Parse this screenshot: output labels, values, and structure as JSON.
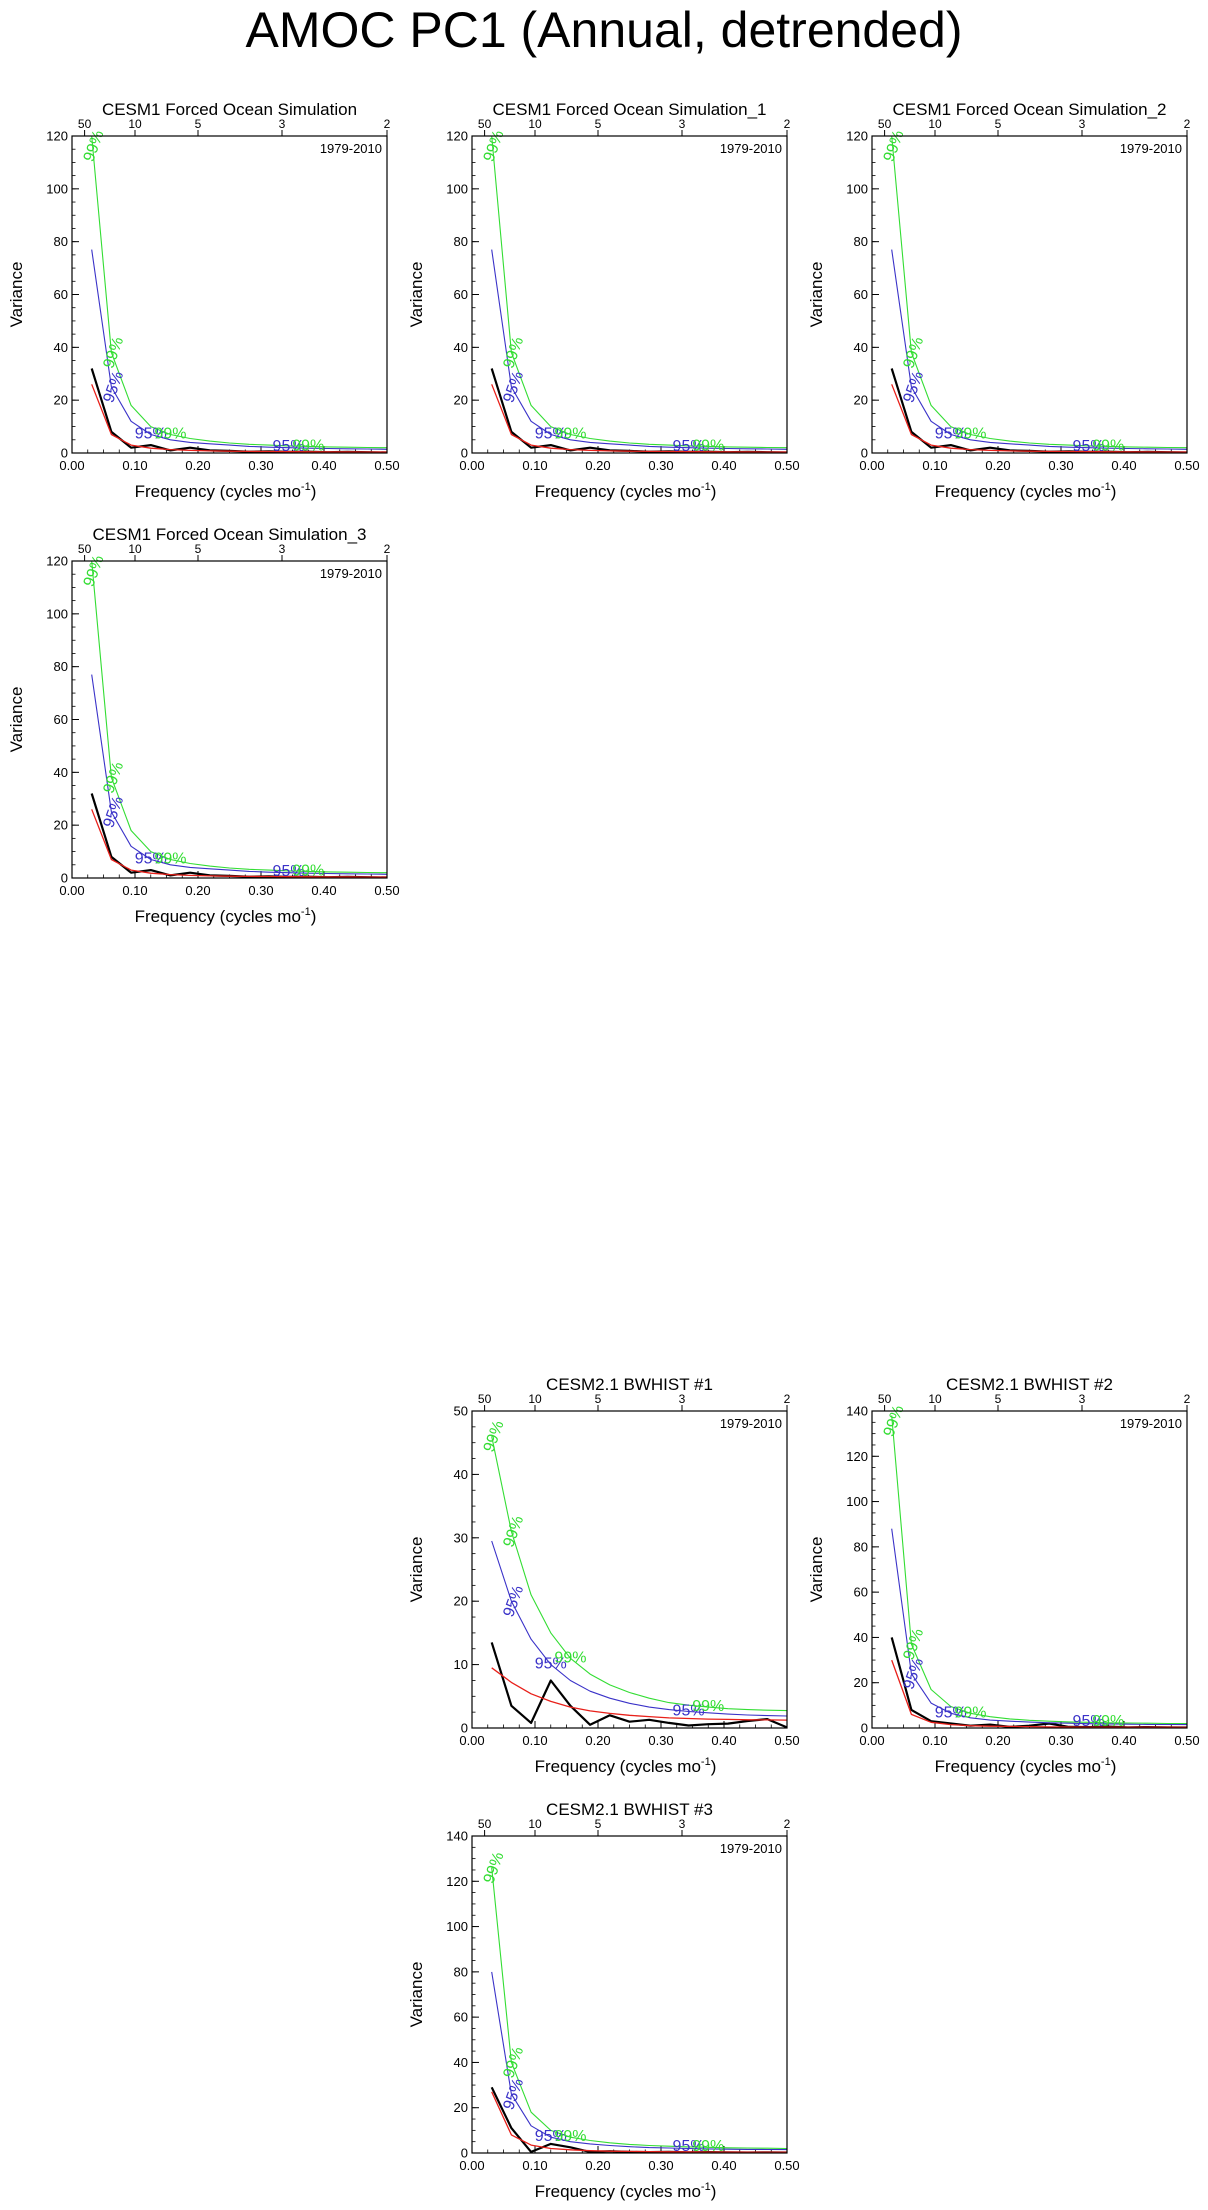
{
  "title": "AMOC PC1 (Annual, detrended)",
  "colors": {
    "series": "#000000",
    "red_noise": "#e8201a",
    "ci95": "#3a32c8",
    "ci99": "#33dd33"
  },
  "chart_data": [
    {
      "type": "line",
      "title": "CESM1 Forced Ocean Simulation",
      "period": "1979-2010",
      "xlabel": "Frequency (cycles mo",
      "xlabel_sup": "-1",
      "xlabel_end": ")",
      "ylabel": "Variance",
      "xlim": [
        0,
        0.5
      ],
      "ylim": [
        0,
        120
      ],
      "yticks": [
        0,
        20,
        40,
        60,
        80,
        100,
        120
      ],
      "xticks": [
        0.0,
        0.1,
        0.2,
        0.3,
        0.4,
        0.5
      ],
      "xtick_labels": [
        "0.00",
        "0.10",
        "0.20",
        "0.30",
        "0.40",
        "0.50"
      ],
      "top_ticks": [
        50,
        10,
        5,
        3,
        2
      ],
      "confidence_labels": {
        "c95": "95%",
        "c99": "99%"
      },
      "x": [
        0.03125,
        0.0625,
        0.09375,
        0.125,
        0.15625,
        0.1875,
        0.21875,
        0.25,
        0.28125,
        0.3125,
        0.34375,
        0.375,
        0.40625,
        0.4375,
        0.46875,
        0.5
      ],
      "series": [
        {
          "values": [
            32,
            8,
            2,
            3,
            1,
            2,
            1,
            0.8,
            0.5,
            0.6,
            0.4,
            0.5,
            0.3,
            0.4,
            0.3,
            0.2
          ]
        },
        {
          "values": [
            26,
            7,
            3,
            1.8,
            1.3,
            1,
            0.8,
            0.7,
            0.6,
            0.55,
            0.5,
            0.45,
            0.42,
            0.4,
            0.38,
            0.36
          ]
        },
        {
          "values": [
            77,
            25,
            12,
            7,
            5,
            4,
            3.5,
            3,
            2.5,
            2.2,
            2,
            1.8,
            1.7,
            1.6,
            1.5,
            1.4
          ]
        },
        {
          "values": [
            120,
            38,
            18,
            10,
            7,
            5.5,
            4.5,
            3.8,
            3.3,
            3,
            2.7,
            2.5,
            2.3,
            2.2,
            2.1,
            2
          ]
        }
      ]
    },
    {
      "type": "line",
      "title": "CESM1 Forced Ocean Simulation_1",
      "period": "1979-2010",
      "xlabel": "Frequency (cycles mo",
      "xlabel_sup": "-1",
      "xlabel_end": ")",
      "ylabel": "Variance",
      "xlim": [
        0,
        0.5
      ],
      "ylim": [
        0,
        120
      ],
      "yticks": [
        0,
        20,
        40,
        60,
        80,
        100,
        120
      ],
      "xticks": [
        0.0,
        0.1,
        0.2,
        0.3,
        0.4,
        0.5
      ],
      "xtick_labels": [
        "0.00",
        "0.10",
        "0.20",
        "0.30",
        "0.40",
        "0.50"
      ],
      "top_ticks": [
        50,
        10,
        5,
        3,
        2
      ],
      "confidence_labels": {
        "c95": "95%",
        "c99": "99%"
      },
      "x": [
        0.03125,
        0.0625,
        0.09375,
        0.125,
        0.15625,
        0.1875,
        0.21875,
        0.25,
        0.28125,
        0.3125,
        0.34375,
        0.375,
        0.40625,
        0.4375,
        0.46875,
        0.5
      ],
      "series": [
        {
          "values": [
            32,
            8,
            2,
            3,
            1,
            2,
            1,
            0.8,
            0.5,
            0.6,
            0.4,
            0.5,
            0.3,
            0.4,
            0.3,
            0.2
          ]
        },
        {
          "values": [
            26,
            7,
            3,
            1.8,
            1.3,
            1,
            0.8,
            0.7,
            0.6,
            0.55,
            0.5,
            0.45,
            0.42,
            0.4,
            0.38,
            0.36
          ]
        },
        {
          "values": [
            77,
            25,
            12,
            7,
            5,
            4,
            3.5,
            3,
            2.5,
            2.2,
            2,
            1.8,
            1.7,
            1.6,
            1.5,
            1.4
          ]
        },
        {
          "values": [
            120,
            38,
            18,
            10,
            7,
            5.5,
            4.5,
            3.8,
            3.3,
            3,
            2.7,
            2.5,
            2.3,
            2.2,
            2.1,
            2
          ]
        }
      ]
    },
    {
      "type": "line",
      "title": "CESM1 Forced Ocean Simulation_2",
      "period": "1979-2010",
      "xlabel": "Frequency (cycles mo",
      "xlabel_sup": "-1",
      "xlabel_end": ")",
      "ylabel": "Variance",
      "xlim": [
        0,
        0.5
      ],
      "ylim": [
        0,
        120
      ],
      "yticks": [
        0,
        20,
        40,
        60,
        80,
        100,
        120
      ],
      "xticks": [
        0.0,
        0.1,
        0.2,
        0.3,
        0.4,
        0.5
      ],
      "xtick_labels": [
        "0.00",
        "0.10",
        "0.20",
        "0.30",
        "0.40",
        "0.50"
      ],
      "top_ticks": [
        50,
        10,
        5,
        3,
        2
      ],
      "confidence_labels": {
        "c95": "95%",
        "c99": "99%"
      },
      "x": [
        0.03125,
        0.0625,
        0.09375,
        0.125,
        0.15625,
        0.1875,
        0.21875,
        0.25,
        0.28125,
        0.3125,
        0.34375,
        0.375,
        0.40625,
        0.4375,
        0.46875,
        0.5
      ],
      "series": [
        {
          "values": [
            32,
            8,
            2,
            3,
            1,
            2,
            1,
            0.8,
            0.5,
            0.6,
            0.4,
            0.5,
            0.3,
            0.4,
            0.3,
            0.2
          ]
        },
        {
          "values": [
            26,
            7,
            3,
            1.8,
            1.3,
            1,
            0.8,
            0.7,
            0.6,
            0.55,
            0.5,
            0.45,
            0.42,
            0.4,
            0.38,
            0.36
          ]
        },
        {
          "values": [
            77,
            25,
            12,
            7,
            5,
            4,
            3.5,
            3,
            2.5,
            2.2,
            2,
            1.8,
            1.7,
            1.6,
            1.5,
            1.4
          ]
        },
        {
          "values": [
            120,
            38,
            18,
            10,
            7,
            5.5,
            4.5,
            3.8,
            3.3,
            3,
            2.7,
            2.5,
            2.3,
            2.2,
            2.1,
            2
          ]
        }
      ]
    },
    {
      "type": "line",
      "title": "CESM1 Forced Ocean Simulation_3",
      "period": "1979-2010",
      "xlabel": "Frequency (cycles mo",
      "xlabel_sup": "-1",
      "xlabel_end": ")",
      "ylabel": "Variance",
      "xlim": [
        0,
        0.5
      ],
      "ylim": [
        0,
        120
      ],
      "yticks": [
        0,
        20,
        40,
        60,
        80,
        100,
        120
      ],
      "xticks": [
        0.0,
        0.1,
        0.2,
        0.3,
        0.4,
        0.5
      ],
      "xtick_labels": [
        "0.00",
        "0.10",
        "0.20",
        "0.30",
        "0.40",
        "0.50"
      ],
      "top_ticks": [
        50,
        10,
        5,
        3,
        2
      ],
      "confidence_labels": {
        "c95": "95%",
        "c99": "99%"
      },
      "x": [
        0.03125,
        0.0625,
        0.09375,
        0.125,
        0.15625,
        0.1875,
        0.21875,
        0.25,
        0.28125,
        0.3125,
        0.34375,
        0.375,
        0.40625,
        0.4375,
        0.46875,
        0.5
      ],
      "series": [
        {
          "values": [
            32,
            8,
            2,
            3,
            1,
            2,
            1,
            0.8,
            0.5,
            0.6,
            0.4,
            0.5,
            0.3,
            0.4,
            0.3,
            0.2
          ]
        },
        {
          "values": [
            26,
            7,
            3,
            1.8,
            1.3,
            1,
            0.8,
            0.7,
            0.6,
            0.55,
            0.5,
            0.45,
            0.42,
            0.4,
            0.38,
            0.36
          ]
        },
        {
          "values": [
            77,
            25,
            12,
            7,
            5,
            4,
            3.5,
            3,
            2.5,
            2.2,
            2,
            1.8,
            1.7,
            1.6,
            1.5,
            1.4
          ]
        },
        {
          "values": [
            120,
            38,
            18,
            10,
            7,
            5.5,
            4.5,
            3.8,
            3.3,
            3,
            2.7,
            2.5,
            2.3,
            2.2,
            2.1,
            2
          ]
        }
      ]
    },
    {
      "type": "line",
      "title": "CESM2.1 BWHIST #1",
      "period": "1979-2010",
      "xlabel": "Frequency (cycles mo",
      "xlabel_sup": "-1",
      "xlabel_end": ")",
      "ylabel": "Variance",
      "xlim": [
        0,
        0.5
      ],
      "ylim": [
        0,
        50
      ],
      "yticks": [
        0,
        10,
        20,
        30,
        40,
        50
      ],
      "xticks": [
        0.0,
        0.1,
        0.2,
        0.3,
        0.4,
        0.5
      ],
      "xtick_labels": [
        "0.00",
        "0.10",
        "0.20",
        "0.30",
        "0.40",
        "0.50"
      ],
      "top_ticks": [
        50,
        10,
        5,
        3,
        2
      ],
      "confidence_labels": {
        "c95": "95%",
        "c99": "99%"
      },
      "x": [
        0.03125,
        0.0625,
        0.09375,
        0.125,
        0.15625,
        0.1875,
        0.21875,
        0.25,
        0.28125,
        0.3125,
        0.34375,
        0.375,
        0.40625,
        0.4375,
        0.46875,
        0.5
      ],
      "series": [
        {
          "values": [
            13.5,
            3.5,
            0.8,
            7.5,
            3.5,
            0.5,
            2,
            1,
            1.3,
            0.8,
            0.4,
            0.6,
            0.7,
            1.1,
            1.4,
            0.1
          ]
        },
        {
          "values": [
            9.5,
            7.2,
            5.4,
            4.2,
            3.3,
            2.7,
            2.3,
            2,
            1.8,
            1.6,
            1.5,
            1.4,
            1.35,
            1.3,
            1.28,
            1.25
          ]
        },
        {
          "values": [
            29.5,
            20,
            14,
            10,
            7.5,
            5.8,
            4.7,
            3.9,
            3.3,
            2.9,
            2.6,
            2.4,
            2.2,
            2.05,
            1.95,
            1.9
          ]
        },
        {
          "values": [
            46,
            31,
            21,
            15,
            11,
            8.5,
            6.8,
            5.6,
            4.7,
            4,
            3.6,
            3.3,
            3.05,
            2.9,
            2.8,
            2.75
          ]
        }
      ]
    },
    {
      "type": "line",
      "title": "CESM2.1 BWHIST #2",
      "period": "1979-2010",
      "xlabel": "Frequency (cycles mo",
      "xlabel_sup": "-1",
      "xlabel_end": ")",
      "ylabel": "Variance",
      "xlim": [
        0,
        0.5
      ],
      "ylim": [
        0,
        140
      ],
      "yticks": [
        0,
        20,
        40,
        60,
        80,
        100,
        120,
        140
      ],
      "xticks": [
        0.0,
        0.1,
        0.2,
        0.3,
        0.4,
        0.5
      ],
      "xtick_labels": [
        "0.00",
        "0.10",
        "0.20",
        "0.30",
        "0.40",
        "0.50"
      ],
      "top_ticks": [
        50,
        10,
        5,
        3,
        2
      ],
      "confidence_labels": {
        "c95": "95%",
        "c99": "99%"
      },
      "x": [
        0.03125,
        0.0625,
        0.09375,
        0.125,
        0.15625,
        0.1875,
        0.21875,
        0.25,
        0.28125,
        0.3125,
        0.34375,
        0.375,
        0.40625,
        0.4375,
        0.46875,
        0.5
      ],
      "series": [
        {
          "values": [
            40,
            8,
            3,
            2,
            1,
            1.5,
            0.5,
            1,
            2,
            0.5,
            0.4,
            0.6,
            0.3,
            0.4,
            0.3,
            0.2
          ]
        },
        {
          "values": [
            30,
            6,
            2.5,
            1.5,
            1,
            0.8,
            0.7,
            0.6,
            0.5,
            0.45,
            0.4,
            0.38,
            0.36,
            0.35,
            0.34,
            0.33
          ]
        },
        {
          "values": [
            88,
            24,
            11,
            6.5,
            4.5,
            3.5,
            3,
            2.6,
            2.3,
            2.1,
            1.9,
            1.8,
            1.7,
            1.6,
            1.55,
            1.5
          ]
        },
        {
          "values": [
            138,
            37,
            17,
            9.5,
            6.5,
            5,
            4,
            3.4,
            3,
            2.7,
            2.5,
            2.3,
            2.2,
            2.1,
            2,
            2
          ]
        }
      ]
    },
    {
      "type": "line",
      "title": "CESM2.1 BWHIST #3",
      "period": "1979-2010",
      "xlabel": "Frequency (cycles mo",
      "xlabel_sup": "-1",
      "xlabel_end": ")",
      "ylabel": "Variance",
      "xlim": [
        0,
        0.5
      ],
      "ylim": [
        0,
        140
      ],
      "yticks": [
        0,
        20,
        40,
        60,
        80,
        100,
        120,
        140
      ],
      "xticks": [
        0.0,
        0.1,
        0.2,
        0.3,
        0.4,
        0.5
      ],
      "xtick_labels": [
        "0.00",
        "0.10",
        "0.20",
        "0.30",
        "0.40",
        "0.50"
      ],
      "top_ticks": [
        50,
        10,
        5,
        3,
        2
      ],
      "confidence_labels": {
        "c95": "95%",
        "c99": "99%"
      },
      "x": [
        0.03125,
        0.0625,
        0.09375,
        0.125,
        0.15625,
        0.1875,
        0.21875,
        0.25,
        0.28125,
        0.3125,
        0.34375,
        0.375,
        0.40625,
        0.4375,
        0.46875,
        0.5
      ],
      "series": [
        {
          "values": [
            29,
            11,
            0.5,
            4,
            2.5,
            0.5,
            0.8,
            0.5,
            0.4,
            0.5,
            0.3,
            0.4,
            0.3,
            0.2,
            0.3,
            0.2
          ]
        },
        {
          "values": [
            27,
            8,
            3.5,
            2,
            1.4,
            1,
            0.8,
            0.7,
            0.6,
            0.55,
            0.5,
            0.45,
            0.42,
            0.4,
            0.38,
            0.36
          ]
        },
        {
          "values": [
            80,
            26,
            12,
            7,
            5,
            4,
            3.3,
            2.8,
            2.4,
            2.2,
            2,
            1.8,
            1.7,
            1.6,
            1.55,
            1.5
          ]
        },
        {
          "values": [
            126,
            40,
            18,
            10,
            7,
            5.5,
            4.5,
            3.8,
            3.3,
            3,
            2.7,
            2.5,
            2.3,
            2.2,
            2.1,
            2
          ]
        }
      ]
    }
  ]
}
